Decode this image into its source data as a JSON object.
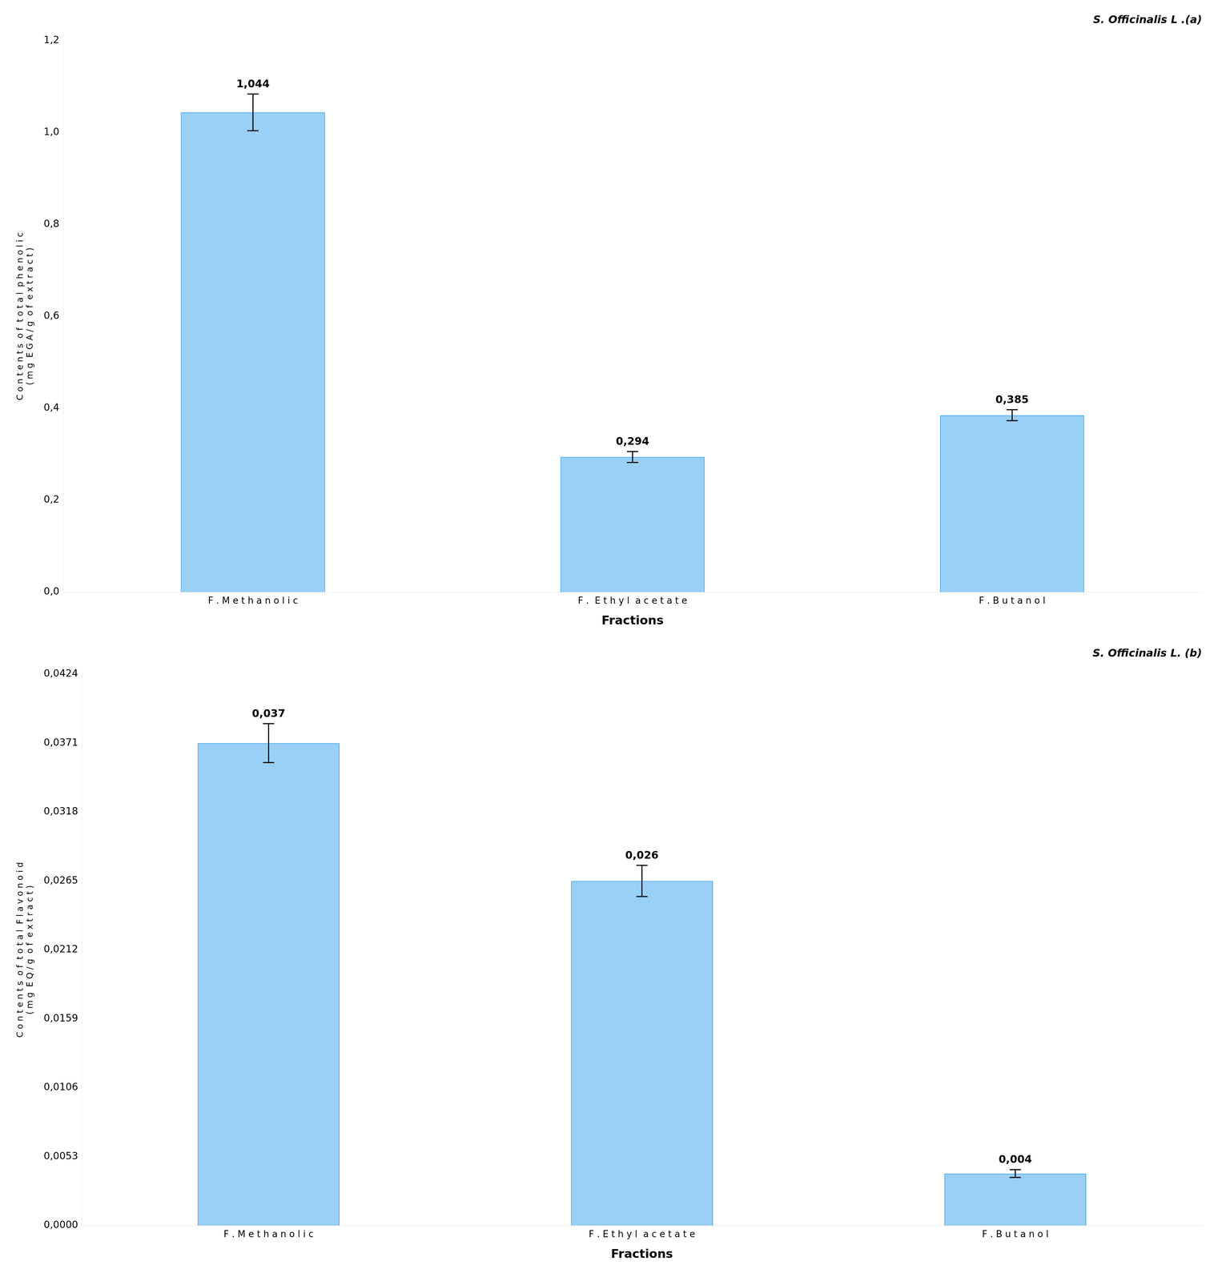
{
  "chart_data": [
    {
      "type": "bar",
      "title": "S. Officinalis L .(a)",
      "x_label": "Fractions",
      "y_label": [
        "C o n t e n t s  o f  t o t a l  p h e n o l i c",
        "( m g  E G A / g  o f  e x t r a c t )"
      ],
      "categories": [
        "F . M e t h a n o l i c",
        "F .  E t h y l  a c e t a t e",
        "F . B u t a n o l"
      ],
      "values": [
        1.044,
        0.294,
        0.385
      ],
      "errors": [
        0.04,
        0.012,
        0.012
      ],
      "value_labels": [
        "1,044",
        "0,294",
        "0,385"
      ],
      "data_labels": true,
      "ylim": [
        0,
        1.2
      ],
      "yticks": [
        {
          "value": 0.0,
          "label": "0,0"
        },
        {
          "value": 0.2,
          "label": "0,2"
        },
        {
          "value": 0.4,
          "label": "0,4"
        },
        {
          "value": 0.6,
          "label": "0,6"
        },
        {
          "value": 0.8,
          "label": "0,8"
        },
        {
          "value": 1.0,
          "label": "1,0"
        },
        {
          "value": 1.2,
          "label": "1,2"
        }
      ],
      "grid": false
    },
    {
      "type": "bar",
      "title": "S. Officinalis L. (b)",
      "x_label": "Fractions",
      "y_label": [
        "C o n t e n t s  o f  t o t a l  F l a v o n o i d",
        "( m g  E Q / g  o f  e x t r a c t )"
      ],
      "categories": [
        "F . M e t h a n o l i c",
        "F . E t h y l  a c e t a t e",
        "F . B u t a n o l"
      ],
      "values": [
        0.0371,
        0.0265,
        0.004
      ],
      "errors": [
        0.0015,
        0.0012,
        0.0003
      ],
      "value_labels": [
        "0,037",
        "0,026",
        "0,004"
      ],
      "data_labels": true,
      "ylim": [
        0,
        0.0424
      ],
      "yticks": [
        {
          "value": 0.0,
          "label": "0,0000"
        },
        {
          "value": 0.0053,
          "label": "0,0053"
        },
        {
          "value": 0.0106,
          "label": "0,0106"
        },
        {
          "value": 0.0159,
          "label": "0,0159"
        },
        {
          "value": 0.0212,
          "label": "0,0212"
        },
        {
          "value": 0.0265,
          "label": "0,0265"
        },
        {
          "value": 0.0318,
          "label": "0,0318"
        },
        {
          "value": 0.0371,
          "label": "0,0371"
        },
        {
          "value": 0.0424,
          "label": "0,0424"
        }
      ],
      "grid": false
    }
  ]
}
